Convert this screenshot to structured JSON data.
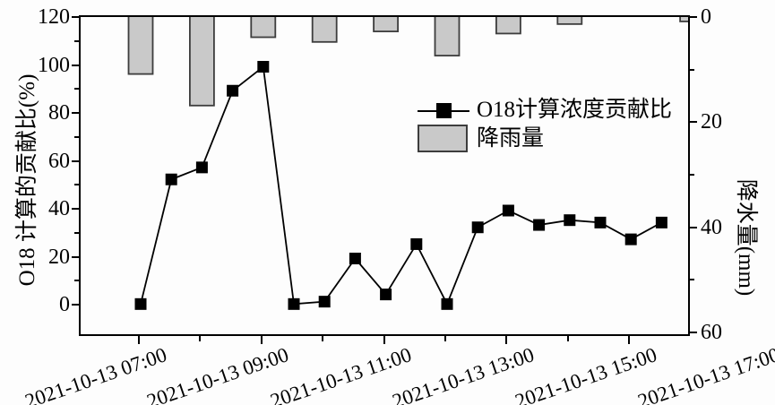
{
  "chart_data": {
    "type": "combo",
    "title": "",
    "x_axis": {
      "kind": "datetime",
      "date": "2021-10-13",
      "range_hours": [
        6.05,
        16.0
      ],
      "hour_ticks": [
        7,
        8,
        9,
        10,
        11,
        12,
        13,
        14,
        15
      ],
      "labels": [
        {
          "hour": 7,
          "text": "2021-10-13 07:00"
        },
        {
          "hour": 9,
          "text": "2021-10-13 09:00"
        },
        {
          "hour": 11,
          "text": "2021-10-13 11:00"
        },
        {
          "hour": 13,
          "text": "2021-10-13 13:00"
        },
        {
          "hour": 15,
          "text": "2021-10-13 15:00"
        },
        {
          "hour": 17,
          "text": "2021-10-13 17:00"
        }
      ]
    },
    "left_axis": {
      "title": "O18 计算的贡献比(%)",
      "min": 0,
      "max": 120,
      "major_ticks": [
        0,
        20,
        40,
        60,
        80,
        100,
        120
      ],
      "minor_ticks": [
        10,
        30,
        50,
        70,
        90,
        110
      ]
    },
    "right_axis": {
      "title": "降水量(mm)",
      "min": 0,
      "max": 60,
      "inverted_downward": true,
      "major_ticks": [
        0,
        20,
        40,
        60
      ],
      "minor_ticks": [
        10,
        30,
        50
      ]
    },
    "series": [
      {
        "name": "O18计算浓度贡献比",
        "type": "line",
        "marker": "filled-square",
        "color": "#000000",
        "axis": "left",
        "x_hours": [
          7.0,
          7.5,
          8.0,
          8.5,
          9.0,
          9.5,
          10.0,
          10.5,
          11.0,
          11.5,
          12.0,
          12.5,
          13.0,
          13.5,
          14.0,
          14.5,
          15.0,
          15.5
        ],
        "values": [
          1,
          53,
          58,
          90,
          100,
          1,
          2,
          20,
          5,
          26,
          1,
          33,
          40,
          34,
          36,
          35,
          28,
          35
        ]
      },
      {
        "name": "降雨量",
        "type": "bar",
        "fill": "#c9c9c9",
        "border": "#3d3d3d",
        "axis": "right",
        "hangs_from_top": true,
        "x_hours": [
          7,
          8,
          9,
          10,
          11,
          12,
          13,
          14,
          15,
          16
        ],
        "values": [
          10.5,
          16.5,
          3.5,
          4.4,
          2.4,
          7.0,
          2.8,
          1.0,
          0,
          0.5
        ]
      }
    ],
    "legend": {
      "position": "inside-center-right",
      "entries": [
        {
          "label": "O18计算浓度贡献比",
          "swatch": "line-with-square-marker"
        },
        {
          "label": "降雨量",
          "swatch": "gray-bar"
        }
      ]
    },
    "grid": "off"
  }
}
